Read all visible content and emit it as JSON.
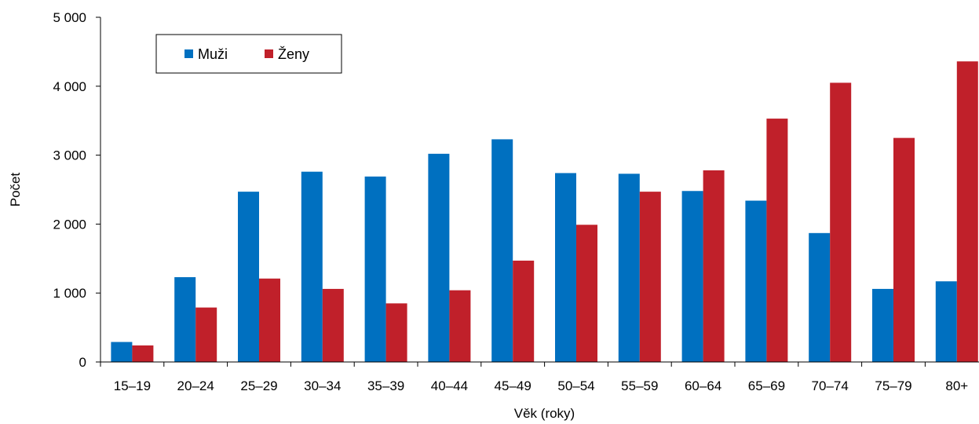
{
  "chart_data": {
    "type": "bar",
    "title": "",
    "xlabel": "Věk (roky)",
    "ylabel": "Počet",
    "ylim": [
      0,
      5000
    ],
    "yticks": [
      0,
      1000,
      2000,
      3000,
      4000,
      5000
    ],
    "ytick_labels": [
      "0",
      "1 000",
      "2 000",
      "3 000",
      "4 000",
      "5 000"
    ],
    "grid": false,
    "legend_position": "top-left",
    "categories": [
      "15–19",
      "20–24",
      "25–29",
      "30–34",
      "35–39",
      "40–44",
      "45–49",
      "50–54",
      "55–59",
      "60–64",
      "65–69",
      "70–74",
      "75–79",
      "80+"
    ],
    "series": [
      {
        "name": "Muži",
        "color": "#0070c0",
        "values": [
          290,
          1230,
          2470,
          2760,
          2690,
          3020,
          3230,
          2740,
          2730,
          2480,
          2340,
          1870,
          1060,
          1170
        ]
      },
      {
        "name": "Ženy",
        "color": "#c0202a",
        "values": [
          240,
          790,
          1210,
          1060,
          850,
          1040,
          1470,
          1990,
          2470,
          2780,
          3530,
          4050,
          3250,
          4360
        ]
      }
    ]
  }
}
